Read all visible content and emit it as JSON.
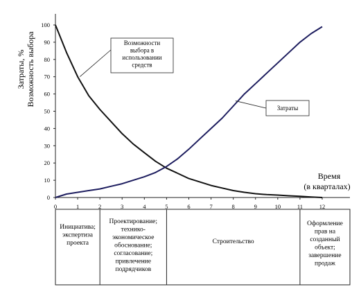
{
  "chart_data": {
    "type": "line",
    "ylabel": [
      "Затраты, %",
      "Возможность выбора"
    ],
    "xlabel": [
      "Время",
      "(в кварталах)"
    ],
    "x_ticks": [
      0,
      1,
      2,
      3,
      4,
      5,
      6,
      7,
      8,
      9,
      10,
      11,
      12
    ],
    "y_ticks": [
      0,
      10,
      20,
      30,
      40,
      50,
      60,
      70,
      80,
      90,
      100
    ],
    "xlim": [
      0,
      12.5
    ],
    "ylim": [
      0,
      100
    ],
    "grid": false,
    "series": [
      {
        "name": "Возможности выбора в использовании средств",
        "color": "#111111",
        "x": [
          0,
          0.5,
          1,
          1.5,
          2,
          2.5,
          3,
          3.5,
          4,
          4.5,
          5,
          5.5,
          6,
          6.5,
          7,
          7.5,
          8,
          8.5,
          9,
          9.5,
          10,
          10.5,
          11,
          11.5,
          12
        ],
        "y": [
          100,
          84,
          70,
          59,
          51,
          44,
          37,
          31,
          26,
          21,
          17,
          14,
          11,
          9,
          7,
          5.5,
          4,
          3,
          2.2,
          1.7,
          1.4,
          1,
          0.7,
          0.3,
          0
        ]
      },
      {
        "name": "Затраты",
        "color": "#1c1c5e",
        "x": [
          0,
          0.5,
          1,
          1.5,
          2,
          2.5,
          3,
          3.5,
          4,
          4.5,
          5,
          5.5,
          6,
          6.5,
          7,
          7.5,
          8,
          8.5,
          9,
          9.5,
          10,
          10.5,
          11,
          11.5,
          12
        ],
        "y": [
          0,
          2,
          3,
          4,
          5,
          6.5,
          8,
          10,
          12,
          14.5,
          18,
          22.5,
          28,
          34,
          40,
          46,
          53,
          60,
          66,
          72,
          78,
          84,
          90,
          95,
          99
        ]
      }
    ],
    "annotations": [
      {
        "text": "Возможности выбора в использовании средств",
        "points_to": [
          1.1,
          70
        ]
      },
      {
        "text": "Затраты",
        "points_to": [
          8.1,
          56
        ]
      }
    ]
  },
  "phases": [
    {
      "label": "Инициатива; экспертиза проекта",
      "from": 0,
      "to": 2
    },
    {
      "label": "Проектирование; технико-экономическое обоснование; согласование; привлечение подрядчиков",
      "from": 2,
      "to": 5
    },
    {
      "label": "Строительство",
      "from": 5,
      "to": 11
    },
    {
      "label": "Оформление прав на созданный объект; завершение продаж",
      "from": 11,
      "to": 12
    }
  ]
}
